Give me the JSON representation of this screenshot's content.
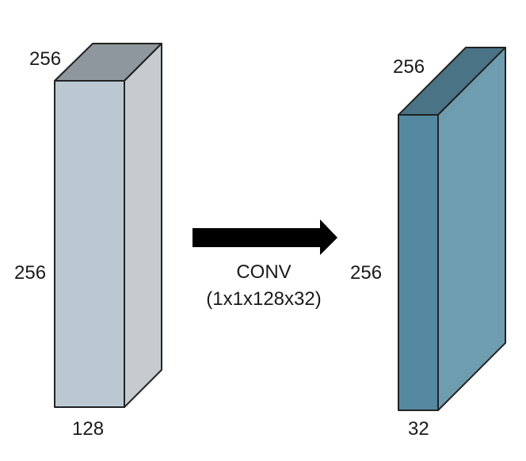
{
  "colors": {
    "input_front": "#BAC8D1",
    "input_top": "#8E979D",
    "input_side": "#C5CBCE",
    "output_front": "#5589A1",
    "output_top": "#4A7386",
    "output_side": "#6E9DB0",
    "arrow": "#000000",
    "edge": "#222222",
    "text": "#1a1a1a"
  },
  "input_volume": {
    "depth_label": "256",
    "height_label": "256",
    "width_label": "128"
  },
  "output_volume": {
    "depth_label": "256",
    "height_label": "256",
    "width_label": "32"
  },
  "operation": {
    "name": "CONV",
    "kernel": "(1x1x128x32)",
    "icon": "right-arrow-icon"
  }
}
